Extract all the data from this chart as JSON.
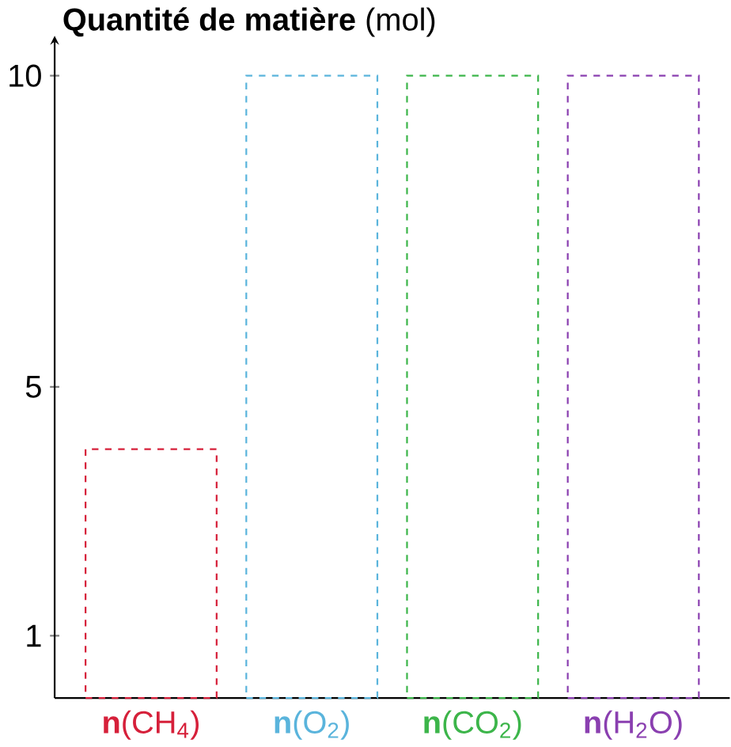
{
  "chart_data": {
    "type": "bar",
    "ylabel": "**Quantité de matière** (mol)",
    "categories": [
      "**n**(CH$_{4}$)",
      "**n**(O$_{2}$)",
      "**n**(CO$_{2}$)",
      "**n**(H$_{2}$O)"
    ],
    "values": [
      4,
      10,
      10,
      10
    ],
    "colors": [
      "#d6203a",
      "#5ab4dc",
      "#3cb54a",
      "#8a3fb0"
    ],
    "ylim": [
      0,
      10.5
    ],
    "yticks": [
      1,
      5,
      10
    ],
    "grid": false,
    "line_style": "dashed"
  }
}
